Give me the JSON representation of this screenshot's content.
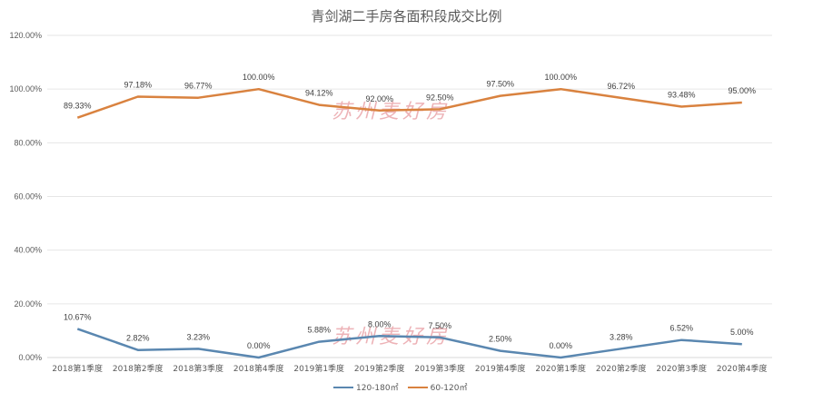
{
  "chart_data": {
    "type": "line",
    "title": "青剑湖二手房各面积段成交比例",
    "xlabel": "",
    "ylabel": "",
    "ylim": [
      0,
      120
    ],
    "yticks": [
      "0.00%",
      "20.00%",
      "40.00%",
      "60.00%",
      "80.00%",
      "100.00%",
      "120.00%"
    ],
    "grid": true,
    "legend_position": "bottom",
    "categories": [
      "2018第1季度",
      "2018第2季度",
      "2018第3季度",
      "2018第4季度",
      "2019第1季度",
      "2019第2季度",
      "2019第3季度",
      "2019第4季度",
      "2020第1季度",
      "2020第2季度",
      "2020第3季度",
      "2020第4季度"
    ],
    "series": [
      {
        "name": "120-180㎡",
        "color": "#5A87B0",
        "values": [
          10.67,
          2.82,
          3.23,
          0.0,
          5.88,
          8.0,
          7.5,
          2.5,
          0.0,
          3.28,
          6.52,
          5.0
        ],
        "labels": [
          "10.67%",
          "2.82%",
          "3.23%",
          "0.00%",
          "5.88%",
          "8.00%",
          "7.50%",
          "2.50%",
          "0.00%",
          "3.28%",
          "6.52%",
          "5.00%"
        ]
      },
      {
        "name": "60-120㎡",
        "color": "#D9823F",
        "values": [
          89.33,
          97.18,
          96.77,
          100.0,
          94.12,
          92.0,
          92.5,
          97.5,
          100.0,
          96.72,
          93.48,
          95.0
        ],
        "labels": [
          "89.33%",
          "97.18%",
          "96.77%",
          "100.00%",
          "94.12%",
          "92.00%",
          "92.50%",
          "97.50%",
          "100.00%",
          "96.72%",
          "93.48%",
          "95.00%"
        ]
      }
    ],
    "annotations": [
      "苏州麦好房",
      "苏州麦好房"
    ]
  },
  "watermark": {
    "text": "苏州麦好房",
    "color": "#E89AA0"
  }
}
